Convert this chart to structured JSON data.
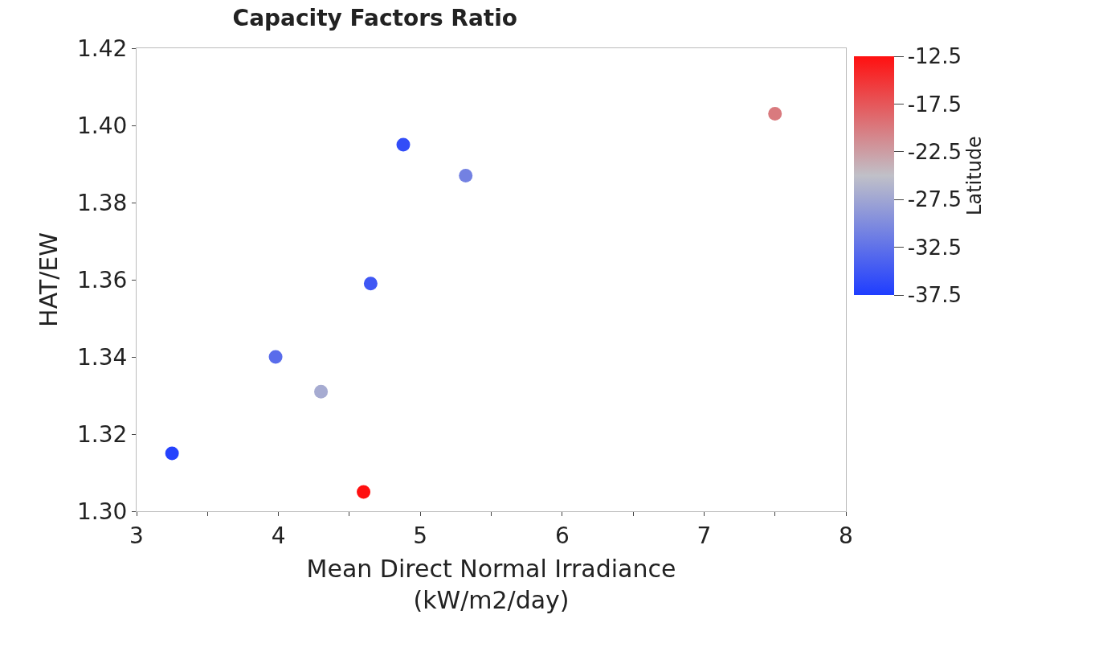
{
  "chart_data": {
    "type": "scatter",
    "title": "Capacity Factors Ratio",
    "xlabel": "Mean Direct Normal Irradiance\n(kW/m2/day)",
    "ylabel": "HAT/EW",
    "clabel": "Latitude",
    "x": [
      3.25,
      3.98,
      4.3,
      4.6,
      4.65,
      4.88,
      5.32,
      7.5
    ],
    "values": [
      1.315,
      1.34,
      1.331,
      1.305,
      1.359,
      1.395,
      1.387,
      1.403
    ],
    "cvalues": [
      -37,
      -33,
      -27,
      -12.5,
      -35,
      -36,
      -31,
      -20
    ],
    "clim": [
      -37.5,
      -12.5
    ],
    "cticks": [
      -37.5,
      -32.5,
      -27.5,
      -22.5,
      -17.5,
      -12.5
    ],
    "xlim": [
      3,
      8
    ],
    "xticks": [
      3,
      {
        "value": 3.5,
        "label": null
      },
      4,
      {
        "value": 4.5,
        "label": null
      },
      5,
      {
        "value": 5.5,
        "label": null
      },
      6,
      {
        "value": 6.5,
        "label": null
      },
      7,
      {
        "value": 7.5,
        "label": null
      },
      8
    ],
    "ylim": [
      1.3,
      1.42
    ],
    "yticks": [
      {
        "value": 1.3,
        "label": "1.30"
      },
      {
        "value": 1.32,
        "label": "1.32"
      },
      {
        "value": 1.34,
        "label": "1.34"
      },
      {
        "value": 1.36,
        "label": "1.36"
      },
      {
        "value": 1.38,
        "label": "1.38"
      },
      {
        "value": 1.4,
        "label": "1.40"
      },
      {
        "value": 1.42,
        "label": "1.42"
      }
    ],
    "marker": "circle"
  }
}
